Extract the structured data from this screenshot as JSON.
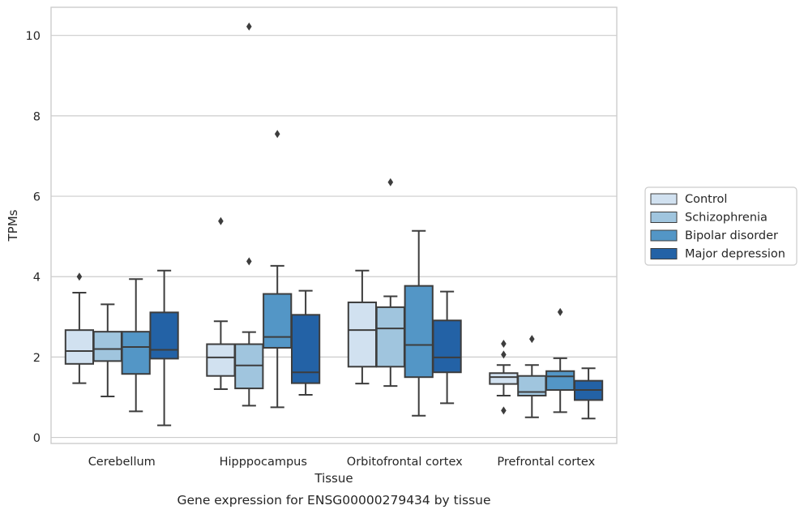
{
  "caption": "Gene expression for ENSG00000279434 by tissue",
  "chart_data": {
    "type": "box",
    "title": "",
    "xlabel": "Tissue",
    "ylabel": "TPMs",
    "ylim": [
      -0.15,
      10.7
    ],
    "yticks": [
      0,
      2,
      4,
      6,
      8,
      10
    ],
    "grid": true,
    "legend_position": "right",
    "categories": [
      "Cerebellum",
      "Hipppocampus",
      "Orbitofrontal cortex",
      "Prefrontal cortex"
    ],
    "series": [
      {
        "name": "Control",
        "color": "#d1e1f0",
        "boxes": [
          {
            "whisker_low": 1.35,
            "q1": 1.83,
            "median": 2.15,
            "q3": 2.67,
            "whisker_high": 3.6,
            "outliers": [
              4.0
            ]
          },
          {
            "whisker_low": 1.2,
            "q1": 1.53,
            "median": 1.99,
            "q3": 2.32,
            "whisker_high": 2.89,
            "outliers": [
              5.38
            ]
          },
          {
            "whisker_low": 1.34,
            "q1": 1.76,
            "median": 2.67,
            "q3": 3.36,
            "whisker_high": 4.15,
            "outliers": []
          },
          {
            "whisker_low": 1.04,
            "q1": 1.33,
            "median": 1.5,
            "q3": 1.6,
            "whisker_high": 1.8,
            "outliers": [
              2.06,
              2.33,
              0.67
            ]
          }
        ]
      },
      {
        "name": "Schizophrenia",
        "color": "#a0c5de",
        "boxes": [
          {
            "whisker_low": 1.02,
            "q1": 1.9,
            "median": 2.2,
            "q3": 2.63,
            "whisker_high": 3.31,
            "outliers": []
          },
          {
            "whisker_low": 0.79,
            "q1": 1.22,
            "median": 1.79,
            "q3": 2.32,
            "whisker_high": 2.62,
            "outliers": [
              4.38,
              10.22
            ]
          },
          {
            "whisker_low": 1.28,
            "q1": 1.76,
            "median": 2.71,
            "q3": 3.24,
            "whisker_high": 3.51,
            "outliers": [
              6.35
            ]
          },
          {
            "whisker_low": 0.5,
            "q1": 1.04,
            "median": 1.13,
            "q3": 1.53,
            "whisker_high": 1.8,
            "outliers": [
              2.45
            ]
          }
        ]
      },
      {
        "name": "Bipolar disorder",
        "color": "#5396c6",
        "boxes": [
          {
            "whisker_low": 0.65,
            "q1": 1.58,
            "median": 2.25,
            "q3": 2.63,
            "whisker_high": 3.94,
            "outliers": []
          },
          {
            "whisker_low": 0.75,
            "q1": 2.23,
            "median": 2.5,
            "q3": 3.57,
            "whisker_high": 4.27,
            "outliers": [
              7.55
            ]
          },
          {
            "whisker_low": 0.54,
            "q1": 1.5,
            "median": 2.3,
            "q3": 3.77,
            "whisker_high": 5.14,
            "outliers": []
          },
          {
            "whisker_low": 0.63,
            "q1": 1.18,
            "median": 1.52,
            "q3": 1.65,
            "whisker_high": 1.97,
            "outliers": [
              3.12
            ]
          }
        ]
      },
      {
        "name": "Major depression",
        "color": "#2362a6",
        "boxes": [
          {
            "whisker_low": 0.3,
            "q1": 1.96,
            "median": 2.18,
            "q3": 3.11,
            "whisker_high": 4.15,
            "outliers": []
          },
          {
            "whisker_low": 1.06,
            "q1": 1.35,
            "median": 1.62,
            "q3": 3.05,
            "whisker_high": 3.65,
            "outliers": []
          },
          {
            "whisker_low": 0.85,
            "q1": 1.62,
            "median": 1.99,
            "q3": 2.91,
            "whisker_high": 3.63,
            "outliers": []
          },
          {
            "whisker_low": 0.47,
            "q1": 0.93,
            "median": 1.18,
            "q3": 1.41,
            "whisker_high": 1.72,
            "outliers": []
          }
        ]
      }
    ]
  }
}
